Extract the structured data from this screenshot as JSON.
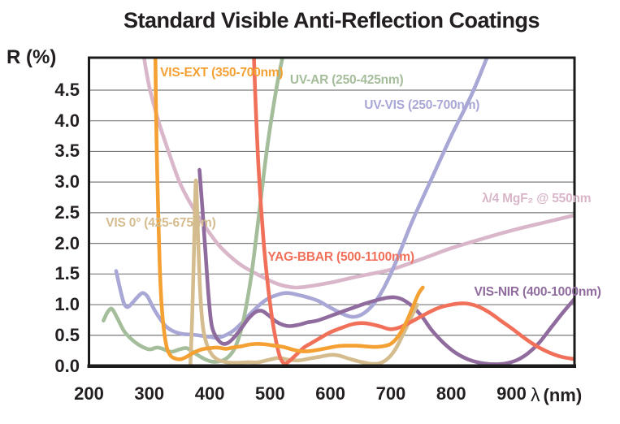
{
  "title": "Standard Visible Anti-Reflection Coatings",
  "axes": {
    "y_label": "R (%)",
    "x_label_lambda": "λ",
    "x_label_unit": "(nm)",
    "y_ticks": [
      {
        "v": 0.0,
        "t": "0.0"
      },
      {
        "v": 0.5,
        "t": "0.5"
      },
      {
        "v": 1.0,
        "t": "1.0"
      },
      {
        "v": 1.5,
        "t": "1.5"
      },
      {
        "v": 2.0,
        "t": "2.0"
      },
      {
        "v": 2.5,
        "t": "2.5"
      },
      {
        "v": 3.0,
        "t": "3.0"
      },
      {
        "v": 3.5,
        "t": "3.5"
      },
      {
        "v": 4.0,
        "t": "4.0"
      },
      {
        "v": 4.5,
        "t": "4.5"
      }
    ],
    "x_ticks": [
      {
        "v": 200,
        "t": "200"
      },
      {
        "v": 300,
        "t": "300"
      },
      {
        "v": 400,
        "t": "400"
      },
      {
        "v": 500,
        "t": "500"
      },
      {
        "v": 600,
        "t": "600"
      },
      {
        "v": 700,
        "t": "700"
      },
      {
        "v": 800,
        "t": "800"
      },
      {
        "v": 900,
        "t": "900"
      }
    ]
  },
  "colors": {
    "grid": "#7a7a7a",
    "axis_border": "#1b1b1b",
    "text": "#231f20"
  },
  "chart_data": {
    "type": "line",
    "title": "Standard Visible Anti-Reflection Coatings",
    "xlabel": "λ (nm)",
    "ylabel": "R (%)",
    "xlim": [
      200,
      1000
    ],
    "ylim": [
      0,
      5
    ],
    "grid": true,
    "grid_step": 0.5,
    "legend_position": "inline-annotations",
    "series": [
      {
        "name": "quarter-wave-mgf2",
        "label": "λ/4 MgF₂ @ 550nm",
        "color": "#d9b6c9",
        "label_pos": {
          "x": 851,
          "y": 2.73
        },
        "points": [
          [
            290,
            5.1
          ],
          [
            300,
            4.55
          ],
          [
            315,
            4.0
          ],
          [
            330,
            3.55
          ],
          [
            350,
            3.0
          ],
          [
            370,
            2.62
          ],
          [
            392,
            2.28
          ],
          [
            417,
            1.95
          ],
          [
            450,
            1.66
          ],
          [
            484,
            1.47
          ],
          [
            512,
            1.34
          ],
          [
            540,
            1.28
          ],
          [
            565,
            1.3
          ],
          [
            600,
            1.36
          ],
          [
            650,
            1.47
          ],
          [
            700,
            1.57
          ],
          [
            750,
            1.74
          ],
          [
            800,
            1.92
          ],
          [
            850,
            2.07
          ],
          [
            900,
            2.21
          ],
          [
            950,
            2.33
          ],
          [
            1005,
            2.46
          ]
        ]
      },
      {
        "name": "uv-vis",
        "label": "UV-VIS (250-700nm)",
        "color": "#a8a7d6",
        "label_pos": {
          "x": 656,
          "y": 4.25
        },
        "points": [
          [
            245,
            1.55
          ],
          [
            252,
            1.24
          ],
          [
            258,
            1.02
          ],
          [
            264,
            0.96
          ],
          [
            272,
            1.03
          ],
          [
            281,
            1.13
          ],
          [
            289,
            1.19
          ],
          [
            297,
            1.13
          ],
          [
            307,
            0.94
          ],
          [
            317,
            0.78
          ],
          [
            328,
            0.64
          ],
          [
            341,
            0.56
          ],
          [
            356,
            0.52
          ],
          [
            372,
            0.51
          ],
          [
            388,
            0.49
          ],
          [
            402,
            0.47
          ],
          [
            413,
            0.46
          ],
          [
            426,
            0.5
          ],
          [
            440,
            0.58
          ],
          [
            455,
            0.72
          ],
          [
            470,
            0.88
          ],
          [
            492,
            1.07
          ],
          [
            512,
            1.16
          ],
          [
            528,
            1.19
          ],
          [
            546,
            1.16
          ],
          [
            562,
            1.12
          ],
          [
            580,
            1.06
          ],
          [
            600,
            0.95
          ],
          [
            620,
            0.85
          ],
          [
            636,
            0.8
          ],
          [
            652,
            0.84
          ],
          [
            668,
            0.97
          ],
          [
            682,
            1.16
          ],
          [
            696,
            1.42
          ],
          [
            712,
            1.78
          ],
          [
            735,
            2.35
          ],
          [
            765,
            3.0
          ],
          [
            800,
            3.75
          ],
          [
            835,
            4.45
          ],
          [
            862,
            5.1
          ]
        ]
      },
      {
        "name": "uv-ar",
        "label": "UV-AR (250-425nm)",
        "color": "#a4bd9b",
        "label_pos": {
          "x": 533,
          "y": 4.66
        },
        "points": [
          [
            224,
            0.74
          ],
          [
            231,
            0.88
          ],
          [
            238,
            0.93
          ],
          [
            247,
            0.78
          ],
          [
            258,
            0.57
          ],
          [
            270,
            0.44
          ],
          [
            285,
            0.33
          ],
          [
            300,
            0.27
          ],
          [
            312,
            0.3
          ],
          [
            322,
            0.28
          ],
          [
            336,
            0.23
          ],
          [
            350,
            0.27
          ],
          [
            362,
            0.29
          ],
          [
            375,
            0.21
          ],
          [
            390,
            0.12
          ],
          [
            404,
            0.07
          ],
          [
            418,
            0.08
          ],
          [
            430,
            0.14
          ],
          [
            441,
            0.28
          ],
          [
            451,
            0.55
          ],
          [
            460,
            0.95
          ],
          [
            470,
            1.55
          ],
          [
            482,
            2.5
          ],
          [
            495,
            3.55
          ],
          [
            510,
            4.5
          ],
          [
            522,
            5.1
          ]
        ]
      },
      {
        "name": "vis-nir",
        "label": "VIS-NIR (400-1000nm)",
        "color": "#906b9e",
        "label_pos": {
          "x": 838,
          "y": 1.2
        },
        "points": [
          [
            383,
            3.2
          ],
          [
            388,
            2.55
          ],
          [
            393,
            1.85
          ],
          [
            398,
            1.15
          ],
          [
            403,
            0.68
          ],
          [
            409,
            0.5
          ],
          [
            416,
            0.4
          ],
          [
            423,
            0.36
          ],
          [
            431,
            0.38
          ],
          [
            441,
            0.47
          ],
          [
            452,
            0.61
          ],
          [
            464,
            0.77
          ],
          [
            476,
            0.88
          ],
          [
            486,
            0.9
          ],
          [
            497,
            0.83
          ],
          [
            509,
            0.73
          ],
          [
            521,
            0.67
          ],
          [
            533,
            0.65
          ],
          [
            547,
            0.67
          ],
          [
            562,
            0.71
          ],
          [
            578,
            0.74
          ],
          [
            596,
            0.8
          ],
          [
            615,
            0.87
          ],
          [
            635,
            0.94
          ],
          [
            655,
            1.01
          ],
          [
            675,
            1.07
          ],
          [
            692,
            1.11
          ],
          [
            706,
            1.12
          ],
          [
            720,
            1.08
          ],
          [
            736,
            0.97
          ],
          [
            752,
            0.8
          ],
          [
            768,
            0.58
          ],
          [
            788,
            0.37
          ],
          [
            808,
            0.21
          ],
          [
            830,
            0.1
          ],
          [
            855,
            0.04
          ],
          [
            882,
            0.03
          ],
          [
            905,
            0.08
          ],
          [
            925,
            0.19
          ],
          [
            945,
            0.37
          ],
          [
            965,
            0.62
          ],
          [
            985,
            0.87
          ],
          [
            1005,
            1.1
          ]
        ]
      },
      {
        "name": "vis-0deg",
        "label": "VIS 0° (425-675nm)",
        "color": "#d5bc8e",
        "label_pos": {
          "x": 228,
          "y": 2.33
        },
        "points": [
          [
            368,
            0.03
          ],
          [
            371,
            0.8
          ],
          [
            374,
            1.9
          ],
          [
            377,
            3.02
          ],
          [
            380,
            2.3
          ],
          [
            384,
            1.25
          ],
          [
            389,
            0.62
          ],
          [
            396,
            0.33
          ],
          [
            404,
            0.18
          ],
          [
            414,
            0.1
          ],
          [
            428,
            0.06
          ],
          [
            444,
            0.05
          ],
          [
            462,
            0.06
          ],
          [
            480,
            0.06
          ],
          [
            498,
            0.1
          ],
          [
            514,
            0.13
          ],
          [
            532,
            0.1
          ],
          [
            548,
            0.09
          ],
          [
            565,
            0.12
          ],
          [
            583,
            0.15
          ],
          [
            600,
            0.18
          ],
          [
            614,
            0.17
          ],
          [
            630,
            0.12
          ],
          [
            648,
            0.07
          ],
          [
            664,
            0.04
          ],
          [
            680,
            0.04
          ],
          [
            695,
            0.12
          ],
          [
            708,
            0.28
          ],
          [
            722,
            0.55
          ],
          [
            735,
            0.82
          ],
          [
            744,
            1.0
          ]
        ]
      },
      {
        "name": "yag-bbar",
        "label": "YAG-BBAR (500-1100nm)",
        "color": "#f1705a",
        "label_pos": {
          "x": 496,
          "y": 1.77
        },
        "points": [
          [
            473,
            5.1
          ],
          [
            476,
            4.3
          ],
          [
            480,
            3.4
          ],
          [
            485,
            2.6
          ],
          [
            490,
            1.95
          ],
          [
            496,
            1.35
          ],
          [
            503,
            0.8
          ],
          [
            510,
            0.4
          ],
          [
            517,
            0.13
          ],
          [
            524,
            0.04
          ],
          [
            532,
            0.08
          ],
          [
            543,
            0.18
          ],
          [
            556,
            0.3
          ],
          [
            568,
            0.37
          ],
          [
            582,
            0.45
          ],
          [
            600,
            0.55
          ],
          [
            618,
            0.62
          ],
          [
            636,
            0.68
          ],
          [
            652,
            0.7
          ],
          [
            668,
            0.68
          ],
          [
            684,
            0.64
          ],
          [
            698,
            0.6
          ],
          [
            712,
            0.62
          ],
          [
            728,
            0.69
          ],
          [
            745,
            0.78
          ],
          [
            762,
            0.87
          ],
          [
            780,
            0.95
          ],
          [
            800,
            1.0
          ],
          [
            822,
            1.02
          ],
          [
            842,
            0.98
          ],
          [
            862,
            0.88
          ],
          [
            882,
            0.74
          ],
          [
            902,
            0.6
          ],
          [
            922,
            0.45
          ],
          [
            942,
            0.32
          ],
          [
            962,
            0.22
          ],
          [
            982,
            0.15
          ],
          [
            1005,
            0.11
          ]
        ]
      },
      {
        "name": "vis-ext",
        "label": "VIS-EXT (350-700nm)",
        "color": "#f5a032",
        "label_pos": {
          "x": 318,
          "y": 4.78
        },
        "points": [
          [
            310,
            5.1
          ],
          [
            311,
            4.2
          ],
          [
            313,
            3.2
          ],
          [
            315,
            2.4
          ],
          [
            317,
            1.7
          ],
          [
            320,
            1.05
          ],
          [
            324,
            0.6
          ],
          [
            329,
            0.3
          ],
          [
            335,
            0.17
          ],
          [
            343,
            0.12
          ],
          [
            352,
            0.11
          ],
          [
            362,
            0.15
          ],
          [
            374,
            0.22
          ],
          [
            387,
            0.27
          ],
          [
            400,
            0.29
          ],
          [
            413,
            0.3
          ],
          [
            426,
            0.28
          ],
          [
            438,
            0.3
          ],
          [
            452,
            0.32
          ],
          [
            466,
            0.35
          ],
          [
            480,
            0.36
          ],
          [
            494,
            0.35
          ],
          [
            508,
            0.33
          ],
          [
            522,
            0.31
          ],
          [
            536,
            0.27
          ],
          [
            550,
            0.24
          ],
          [
            564,
            0.24
          ],
          [
            578,
            0.26
          ],
          [
            594,
            0.29
          ],
          [
            610,
            0.32
          ],
          [
            626,
            0.33
          ],
          [
            642,
            0.33
          ],
          [
            658,
            0.32
          ],
          [
            672,
            0.31
          ],
          [
            686,
            0.32
          ],
          [
            700,
            0.36
          ],
          [
            712,
            0.48
          ],
          [
            724,
            0.68
          ],
          [
            736,
            0.95
          ],
          [
            746,
            1.18
          ],
          [
            753,
            1.28
          ]
        ]
      }
    ]
  }
}
